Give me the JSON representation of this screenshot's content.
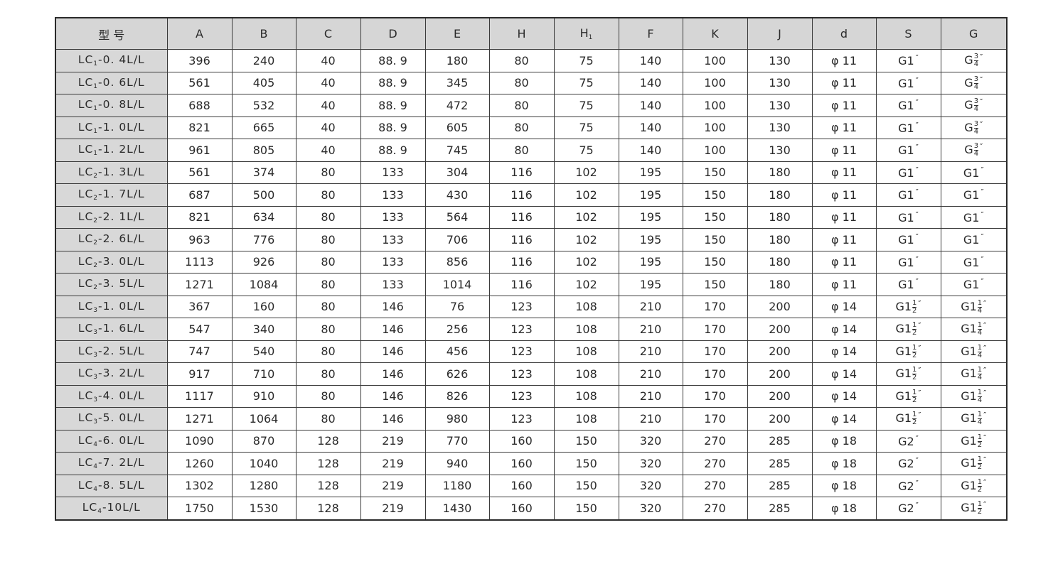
{
  "table": {
    "headers": [
      {
        "main": "型 号"
      },
      {
        "main": "A"
      },
      {
        "main": "B"
      },
      {
        "main": "C"
      },
      {
        "main": "D"
      },
      {
        "main": "E"
      },
      {
        "main": "H"
      },
      {
        "main": "H",
        "sub": "1"
      },
      {
        "main": "F"
      },
      {
        "main": "K"
      },
      {
        "main": "J"
      },
      {
        "main": "d"
      },
      {
        "main": "S"
      },
      {
        "main": "G"
      }
    ],
    "rows": [
      {
        "model": {
          "base": "LC",
          "sub": "1",
          "rest": "-0. 4L/L"
        },
        "values": [
          "396",
          "240",
          "40",
          "88. 9",
          "180",
          "80",
          "75",
          "140",
          "100",
          "130",
          "φ 11"
        ],
        "S": {
          "main": "G1",
          "inch": "″"
        },
        "G": {
          "main": "G",
          "num": "3",
          "den": "4",
          "inch": "″"
        }
      },
      {
        "model": {
          "base": "LC",
          "sub": "1",
          "rest": "-0. 6L/L"
        },
        "values": [
          "561",
          "405",
          "40",
          "88. 9",
          "345",
          "80",
          "75",
          "140",
          "100",
          "130",
          "φ 11"
        ],
        "S": {
          "main": "G1",
          "inch": "″"
        },
        "G": {
          "main": "G",
          "num": "3",
          "den": "4",
          "inch": "″"
        }
      },
      {
        "model": {
          "base": "LC",
          "sub": "1",
          "rest": "-0. 8L/L"
        },
        "values": [
          "688",
          "532",
          "40",
          "88. 9",
          "472",
          "80",
          "75",
          "140",
          "100",
          "130",
          "φ 11"
        ],
        "S": {
          "main": "G1",
          "inch": "″"
        },
        "G": {
          "main": "G",
          "num": "3",
          "den": "4",
          "inch": "″"
        }
      },
      {
        "model": {
          "base": "LC",
          "sub": "1",
          "rest": "-1. 0L/L"
        },
        "values": [
          "821",
          "665",
          "40",
          "88. 9",
          "605",
          "80",
          "75",
          "140",
          "100",
          "130",
          "φ 11"
        ],
        "S": {
          "main": "G1",
          "inch": "″"
        },
        "G": {
          "main": "G",
          "num": "3",
          "den": "4",
          "inch": "″"
        }
      },
      {
        "model": {
          "base": "LC",
          "sub": "1",
          "rest": "-1. 2L/L"
        },
        "values": [
          "961",
          "805",
          "40",
          "88. 9",
          "745",
          "80",
          "75",
          "140",
          "100",
          "130",
          "φ 11"
        ],
        "S": {
          "main": "G1",
          "inch": "″"
        },
        "G": {
          "main": "G",
          "num": "3",
          "den": "4",
          "inch": "″"
        }
      },
      {
        "model": {
          "base": "LC",
          "sub": "2",
          "rest": "-1. 3L/L"
        },
        "values": [
          "561",
          "374",
          "80",
          "133",
          "304",
          "116",
          "102",
          "195",
          "150",
          "180",
          "φ 11"
        ],
        "S": {
          "main": "G1",
          "inch": "″"
        },
        "G": {
          "main": "G1",
          "inch": "″"
        }
      },
      {
        "model": {
          "base": "LC",
          "sub": "2",
          "rest": "-1. 7L/L"
        },
        "values": [
          "687",
          "500",
          "80",
          "133",
          "430",
          "116",
          "102",
          "195",
          "150",
          "180",
          "φ 11"
        ],
        "S": {
          "main": "G1",
          "inch": "″"
        },
        "G": {
          "main": "G1",
          "inch": "″"
        }
      },
      {
        "model": {
          "base": "LC",
          "sub": "2",
          "rest": "-2. 1L/L"
        },
        "values": [
          "821",
          "634",
          "80",
          "133",
          "564",
          "116",
          "102",
          "195",
          "150",
          "180",
          "φ 11"
        ],
        "S": {
          "main": "G1",
          "inch": "″"
        },
        "G": {
          "main": "G1",
          "inch": "″"
        }
      },
      {
        "model": {
          "base": "LC",
          "sub": "2",
          "rest": "-2. 6L/L"
        },
        "values": [
          "963",
          "776",
          "80",
          "133",
          "706",
          "116",
          "102",
          "195",
          "150",
          "180",
          "φ 11"
        ],
        "S": {
          "main": "G1",
          "inch": "″"
        },
        "G": {
          "main": "G1",
          "inch": "″"
        }
      },
      {
        "model": {
          "base": "LC",
          "sub": "2",
          "rest": "-3. 0L/L"
        },
        "values": [
          "1113",
          "926",
          "80",
          "133",
          "856",
          "116",
          "102",
          "195",
          "150",
          "180",
          "φ 11"
        ],
        "S": {
          "main": "G1",
          "inch": "″"
        },
        "G": {
          "main": "G1",
          "inch": "″"
        }
      },
      {
        "model": {
          "base": "LC",
          "sub": "2",
          "rest": "-3. 5L/L"
        },
        "values": [
          "1271",
          "1084",
          "80",
          "133",
          "1014",
          "116",
          "102",
          "195",
          "150",
          "180",
          "φ 11"
        ],
        "S": {
          "main": "G1",
          "inch": "″"
        },
        "G": {
          "main": "G1",
          "inch": "″"
        }
      },
      {
        "model": {
          "base": "LC",
          "sub": "3",
          "rest": "-1. 0L/L"
        },
        "values": [
          "367",
          "160",
          "80",
          "146",
          "76",
          "123",
          "108",
          "210",
          "170",
          "200",
          "φ 14"
        ],
        "S": {
          "main": "G1",
          "num": "1",
          "den": "2",
          "inch": "″"
        },
        "G": {
          "main": "G1",
          "num": "1",
          "den": "4",
          "inch": "″"
        }
      },
      {
        "model": {
          "base": "LC",
          "sub": "3",
          "rest": "-1. 6L/L"
        },
        "values": [
          "547",
          "340",
          "80",
          "146",
          "256",
          "123",
          "108",
          "210",
          "170",
          "200",
          "φ 14"
        ],
        "S": {
          "main": "G1",
          "num": "1",
          "den": "2",
          "inch": "″"
        },
        "G": {
          "main": "G1",
          "num": "1",
          "den": "4",
          "inch": "″"
        }
      },
      {
        "model": {
          "base": "LC",
          "sub": "3",
          "rest": "-2. 5L/L"
        },
        "values": [
          "747",
          "540",
          "80",
          "146",
          "456",
          "123",
          "108",
          "210",
          "170",
          "200",
          "φ 14"
        ],
        "S": {
          "main": "G1",
          "num": "1",
          "den": "2",
          "inch": "″"
        },
        "G": {
          "main": "G1",
          "num": "1",
          "den": "4",
          "inch": "″"
        }
      },
      {
        "model": {
          "base": "LC",
          "sub": "3",
          "rest": "-3. 2L/L"
        },
        "values": [
          "917",
          "710",
          "80",
          "146",
          "626",
          "123",
          "108",
          "210",
          "170",
          "200",
          "φ 14"
        ],
        "S": {
          "main": "G1",
          "num": "1",
          "den": "2",
          "inch": "″"
        },
        "G": {
          "main": "G1",
          "num": "1",
          "den": "4",
          "inch": "″"
        }
      },
      {
        "model": {
          "base": "LC",
          "sub": "3",
          "rest": "-4. 0L/L"
        },
        "values": [
          "1117",
          "910",
          "80",
          "146",
          "826",
          "123",
          "108",
          "210",
          "170",
          "200",
          "φ 14"
        ],
        "S": {
          "main": "G1",
          "num": "1",
          "den": "2",
          "inch": "″"
        },
        "G": {
          "main": "G1",
          "num": "1",
          "den": "4",
          "inch": "″"
        }
      },
      {
        "model": {
          "base": "LC",
          "sub": "3",
          "rest": "-5. 0L/L"
        },
        "values": [
          "1271",
          "1064",
          "80",
          "146",
          "980",
          "123",
          "108",
          "210",
          "170",
          "200",
          "φ 14"
        ],
        "S": {
          "main": "G1",
          "num": "1",
          "den": "2",
          "inch": "″"
        },
        "G": {
          "main": "G1",
          "num": "1",
          "den": "4",
          "inch": "″"
        }
      },
      {
        "model": {
          "base": "LC",
          "sub": "4",
          "rest": "-6. 0L/L"
        },
        "values": [
          "1090",
          "870",
          "128",
          "219",
          "770",
          "160",
          "150",
          "320",
          "270",
          "285",
          "φ 18"
        ],
        "S": {
          "main": "G2",
          "inch": "″"
        },
        "G": {
          "main": "G1",
          "num": "1",
          "den": "2",
          "inch": "″"
        }
      },
      {
        "model": {
          "base": "LC",
          "sub": "4",
          "rest": "-7. 2L/L"
        },
        "values": [
          "1260",
          "1040",
          "128",
          "219",
          "940",
          "160",
          "150",
          "320",
          "270",
          "285",
          "φ 18"
        ],
        "S": {
          "main": "G2",
          "inch": "″"
        },
        "G": {
          "main": "G1",
          "num": "1",
          "den": "2",
          "inch": "″"
        }
      },
      {
        "model": {
          "base": "LC",
          "sub": "4",
          "rest": "-8. 5L/L"
        },
        "values": [
          "1302",
          "1280",
          "128",
          "219",
          "1180",
          "160",
          "150",
          "320",
          "270",
          "285",
          "φ 18"
        ],
        "S": {
          "main": "G2",
          "inch": "″"
        },
        "G": {
          "main": "G1",
          "num": "1",
          "den": "2",
          "inch": "″"
        }
      },
      {
        "model": {
          "base": "LC",
          "sub": "4",
          "rest": "-10L/L"
        },
        "values": [
          "1750",
          "1530",
          "128",
          "219",
          "1430",
          "160",
          "150",
          "320",
          "270",
          "285",
          "φ 18"
        ],
        "S": {
          "main": "G2",
          "inch": "″"
        },
        "G": {
          "main": "G1",
          "num": "1",
          "den": "2",
          "inch": "″"
        }
      }
    ]
  }
}
